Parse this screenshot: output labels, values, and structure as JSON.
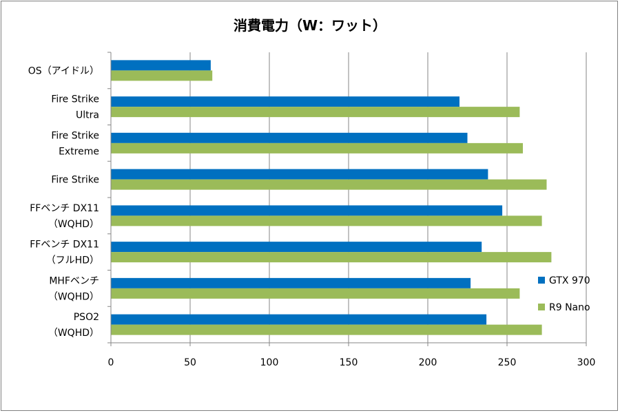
{
  "chart_data": {
    "type": "bar",
    "orientation": "horizontal",
    "title": "消費電力（W：ワット）",
    "xlabel": "",
    "ylabel": "",
    "xlim": [
      0,
      300
    ],
    "xticks": [
      0,
      50,
      100,
      150,
      200,
      250,
      300
    ],
    "grid": "vertical",
    "legend_position": "right",
    "categories": [
      [
        "OS（アイドル）"
      ],
      [
        "Fire Strike",
        "Ultra"
      ],
      [
        "Fire Strike",
        "Extreme"
      ],
      [
        "Fire Strike"
      ],
      [
        "FFベンチ DX11",
        "（WQHD）"
      ],
      [
        "FFベンチ DX11",
        "（フルHD）"
      ],
      [
        "MHFベンチ",
        "（WQHD）"
      ],
      [
        "PSO2",
        "（WQHD）"
      ]
    ],
    "series": [
      {
        "name": "GTX 970",
        "color": "#0070c0",
        "values": [
          63,
          220,
          225,
          238,
          247,
          234,
          227,
          237
        ]
      },
      {
        "name": "R9 Nano",
        "color": "#9bbb59",
        "values": [
          64,
          258,
          260,
          275,
          272,
          278,
          258,
          272
        ]
      }
    ]
  }
}
